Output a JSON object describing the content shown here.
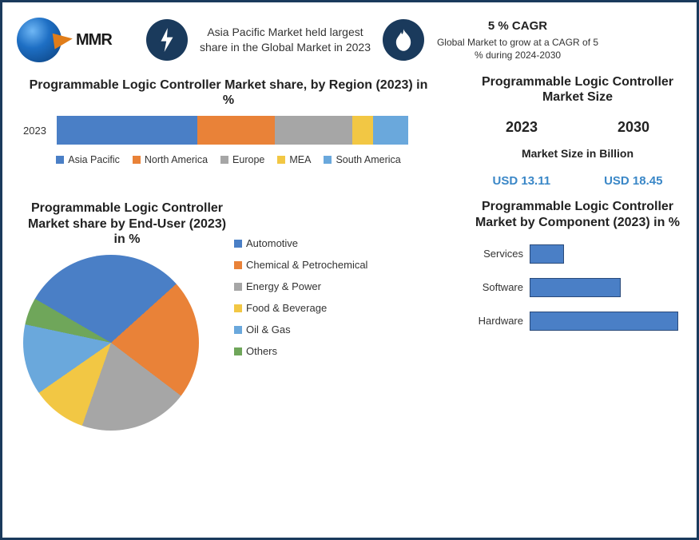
{
  "header": {
    "logo_text": "MMR",
    "fact1": "Asia Pacific Market held largest share in the Global Market in 2023",
    "cagr_title": "5 % CAGR",
    "cagr_sub": "Global Market to grow at a CAGR of 5 % during 2024-2030"
  },
  "region_chart": {
    "title": "Programmable Logic Controller Market share, by Region (2023) in %",
    "type": "stacked-bar",
    "year_label": "2023",
    "segments": [
      {
        "name": "Asia Pacific",
        "value": 40,
        "color": "#4a7fc6"
      },
      {
        "name": "North America",
        "value": 22,
        "color": "#e98238"
      },
      {
        "name": "Europe",
        "value": 22,
        "color": "#a6a6a6"
      },
      {
        "name": "MEA",
        "value": 6,
        "color": "#f2c744"
      },
      {
        "name": "South America",
        "value": 10,
        "color": "#6aa8dc"
      }
    ]
  },
  "market_size": {
    "title": "Programmable Logic Controller Market Size",
    "year_a": "2023",
    "year_b": "2030",
    "subtitle": "Market Size in Billion",
    "val_a": "USD 13.11",
    "val_b": "USD 18.45",
    "value_color": "#3a87c7"
  },
  "enduser_chart": {
    "title": "Programmable Logic Controller Market share by End-User (2023) in %",
    "type": "pie",
    "slices": [
      {
        "name": "Automotive",
        "value": 30,
        "color": "#4a7fc6"
      },
      {
        "name": "Chemical & Petrochemical",
        "value": 22,
        "color": "#e98238"
      },
      {
        "name": "Energy & Power",
        "value": 20,
        "color": "#a6a6a6"
      },
      {
        "name": "Food & Beverage",
        "value": 10,
        "color": "#f2c744"
      },
      {
        "name": "Oil & Gas",
        "value": 13,
        "color": "#6aa8dc"
      },
      {
        "name": "Others",
        "value": 5,
        "color": "#6fa65a"
      }
    ]
  },
  "component_chart": {
    "title": "Programmable Logic Controller Market by Component (2023) in %",
    "type": "bar",
    "xlim": [
      0,
      70
    ],
    "bar_color": "#4a7fc6",
    "bar_border": "#2a4a7a",
    "bars": [
      {
        "name": "Services",
        "value": 15
      },
      {
        "name": "Software",
        "value": 40
      },
      {
        "name": "Hardware",
        "value": 65
      }
    ]
  },
  "style": {
    "background_color": "#ffffff",
    "frame_border_color": "#1a3a5c",
    "badge_bg": "#1a3a5c",
    "title_fontsize": 16,
    "body_fontsize": 13
  }
}
